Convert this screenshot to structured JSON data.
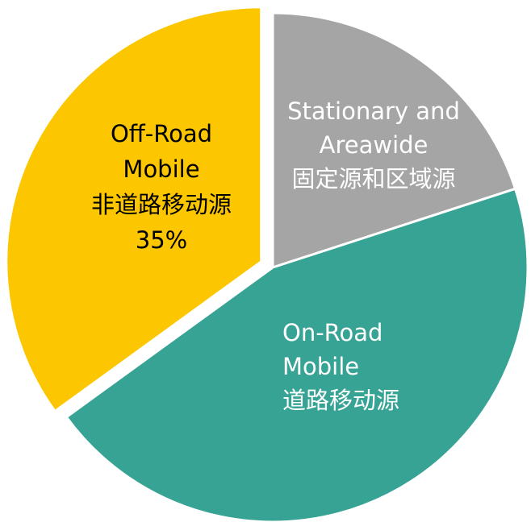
{
  "chart_data": {
    "type": "pie",
    "labels": [
      [
        "Stationary and",
        "Areawide",
        "固定源和区域源"
      ],
      [
        "On-Road",
        "Mobile",
        "道路移动源"
      ],
      [
        "Off-Road",
        "Mobile",
        "非道路移动源"
      ]
    ],
    "values": [
      20,
      45,
      35
    ],
    "value_labels": [
      null,
      null,
      "35%"
    ],
    "colors": [
      "#a5a5a5",
      "#36a394",
      "#fcc600"
    ],
    "label_colors": [
      "#ffffff",
      "#ffffff",
      "#000000"
    ],
    "exploded": [
      false,
      false,
      true
    ]
  }
}
